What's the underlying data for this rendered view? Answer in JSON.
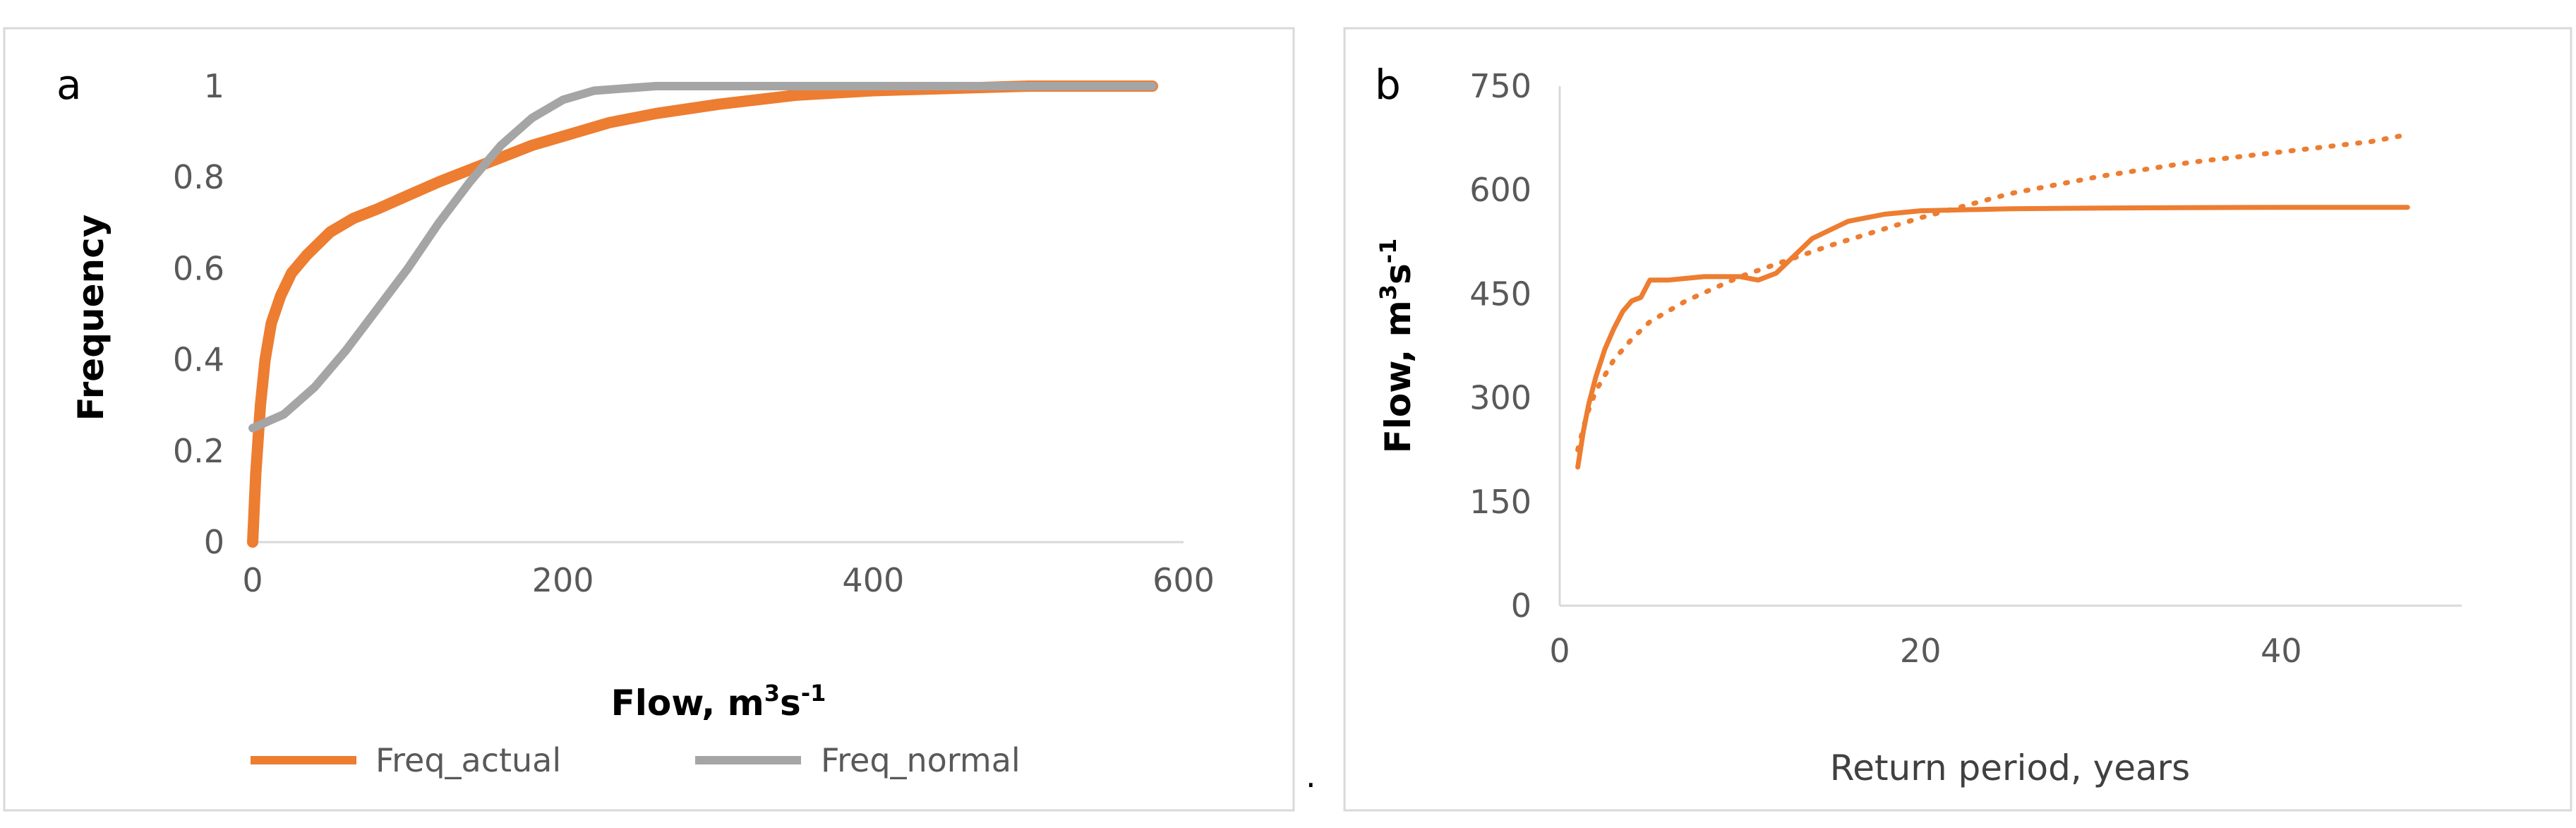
{
  "colors": {
    "actual": "#ED7D31",
    "normal": "#A5A5A5",
    "axis": "#D9D9D9",
    "frame": "#D9D9D9"
  },
  "stray_mark": ".",
  "chart_data": [
    {
      "type": "line",
      "panel_label": "a",
      "xlabel": "Flow, m",
      "xlabel_sup1": "3",
      "xlabel_mid": "s",
      "xlabel_sup2": "-1",
      "ylabel": "Frequency",
      "xlim": [
        0,
        600
      ],
      "ylim": [
        0,
        1
      ],
      "x_ticks": [
        "0",
        "200",
        "400",
        "600"
      ],
      "y_ticks": [
        "0",
        "0.2",
        "0.4",
        "0.6",
        "0.8",
        "1"
      ],
      "grid": false,
      "legend_position": "bottom",
      "series": [
        {
          "name": "Freq_actual",
          "color": "#ED7D31",
          "x": [
            0,
            2,
            5,
            8,
            12,
            18,
            25,
            35,
            50,
            65,
            80,
            100,
            120,
            150,
            180,
            200,
            230,
            260,
            300,
            350,
            400,
            450,
            500,
            580
          ],
          "y": [
            0.0,
            0.15,
            0.3,
            0.4,
            0.48,
            0.54,
            0.59,
            0.63,
            0.68,
            0.71,
            0.73,
            0.76,
            0.79,
            0.83,
            0.87,
            0.89,
            0.92,
            0.94,
            0.96,
            0.98,
            0.99,
            0.995,
            1.0,
            1.0
          ]
        },
        {
          "name": "Freq_normal",
          "color": "#A5A5A5",
          "x": [
            0,
            20,
            40,
            60,
            80,
            100,
            120,
            140,
            160,
            180,
            200,
            220,
            240,
            260,
            300,
            400,
            500,
            580
          ],
          "y": [
            0.25,
            0.28,
            0.34,
            0.42,
            0.51,
            0.6,
            0.7,
            0.79,
            0.87,
            0.93,
            0.97,
            0.99,
            0.995,
            1.0,
            1.0,
            1.0,
            1.0,
            1.0
          ]
        }
      ]
    },
    {
      "type": "line",
      "panel_label": "b",
      "xlabel": "Return period, years",
      "ylabel": "Flow, m",
      "ylabel_sup1": "3",
      "ylabel_mid": "s",
      "ylabel_sup2": "-1",
      "xlim": [
        0,
        50
      ],
      "ylim": [
        0,
        750
      ],
      "x_ticks": [
        "0",
        "20",
        "40"
      ],
      "y_ticks": [
        "0",
        "150",
        "300",
        "450",
        "600",
        "750"
      ],
      "grid": false,
      "legend_position": "none",
      "series": [
        {
          "style": "solid",
          "color": "#ED7D31",
          "x": [
            1,
            1.3,
            1.6,
            2,
            2.5,
            3,
            3.5,
            4,
            4.5,
            5,
            6,
            8,
            10,
            11,
            12,
            13,
            14,
            16,
            18,
            20,
            25,
            30,
            40,
            47
          ],
          "y": [
            200,
            250,
            290,
            330,
            370,
            400,
            425,
            440,
            445,
            470,
            470,
            475,
            475,
            470,
            480,
            505,
            530,
            555,
            565,
            570,
            573,
            574,
            575,
            575
          ]
        },
        {
          "style": "dotted",
          "color": "#ED7D31",
          "x": [
            1,
            1.5,
            2,
            3,
            4,
            5,
            7,
            10,
            15,
            20,
            25,
            30,
            35,
            40,
            45,
            47
          ],
          "y": [
            225,
            275,
            310,
            355,
            385,
            410,
            440,
            475,
            520,
            560,
            595,
            620,
            640,
            655,
            670,
            680
          ]
        }
      ]
    }
  ]
}
